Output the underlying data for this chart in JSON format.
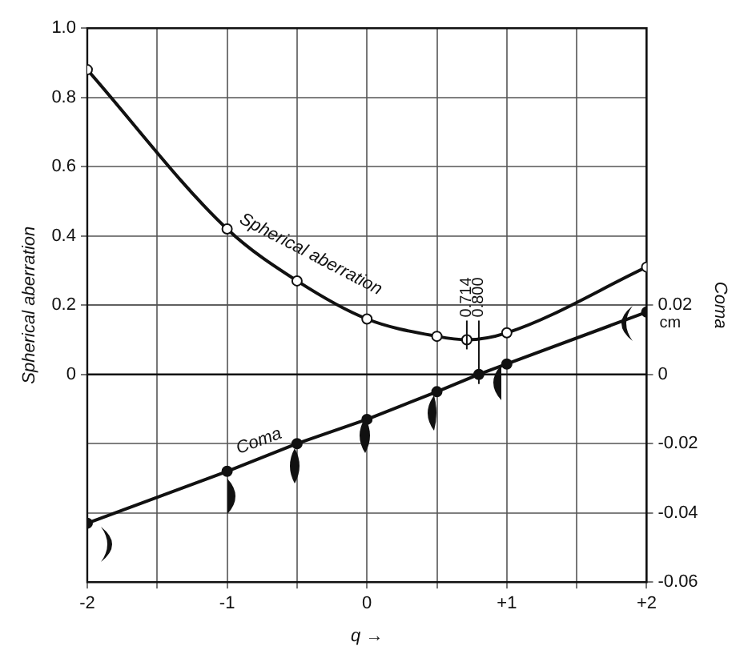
{
  "chart_data": {
    "type": "line",
    "xlabel": "q →",
    "ylabel": "Spherical aberration",
    "y2label": "Coma",
    "xlim": [
      -2,
      2
    ],
    "xticks": [
      {
        "value": -2,
        "label": "-2"
      },
      {
        "value": -1.5,
        "label": null
      },
      {
        "value": -1,
        "label": "-1"
      },
      {
        "value": -0.5,
        "label": null
      },
      {
        "value": 0,
        "label": "0"
      },
      {
        "value": 0.5,
        "label": null
      },
      {
        "value": 1,
        "label": "+1"
      },
      {
        "value": 1.5,
        "label": null
      },
      {
        "value": 2,
        "label": "+2"
      }
    ],
    "ylim": [
      -0.6,
      1.0
    ],
    "yticks": [
      0,
      0.2,
      0.4,
      0.6,
      0.8,
      {
        "value": 1,
        "label": "1.0"
      }
    ],
    "y2lim": [
      -0.06,
      0.1
    ],
    "y2ticks": [
      0.02,
      0,
      -0.02,
      -0.04,
      -0.06
    ],
    "grid": true,
    "marker": "circle",
    "line_style": "solid",
    "series": [
      {
        "name": "Spherical aberration",
        "color": "#111111",
        "x": [
          -2,
          -1,
          -0.5,
          0,
          0.5,
          0.714,
          1,
          2
        ],
        "values": [
          0.88,
          0.42,
          0.27,
          0.16,
          0.11,
          0.1,
          0.12,
          0.31
        ]
      },
      {
        "name": "Coma",
        "color": "#111111",
        "axis": "y2",
        "x": [
          -2,
          -1,
          -0.5,
          0,
          0.5,
          0.8,
          1,
          2
        ],
        "values": [
          -0.043,
          -0.028,
          -0.02,
          -0.013,
          -0.005,
          0,
          0.003,
          0.018
        ]
      }
    ],
    "ref_lines": [
      {
        "axis": "y",
        "value": 0
      }
    ],
    "annotations": [
      {
        "text": "0.714",
        "x": 0.714,
        "y": 0.1
      },
      {
        "text": "0.800",
        "x": 0.8,
        "y": 0
      },
      "cm"
    ]
  }
}
